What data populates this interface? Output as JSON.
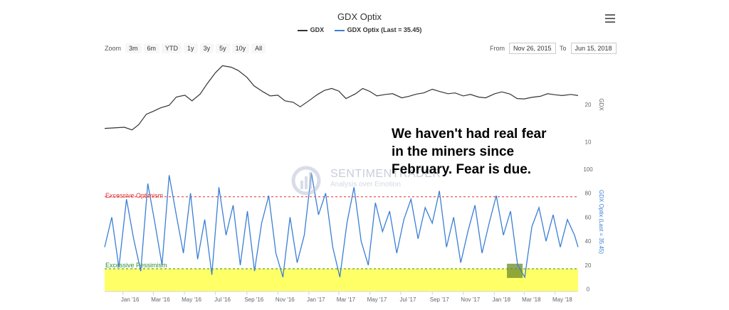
{
  "header": {
    "title": "GDX Optix",
    "menu_icon": "hamburger-menu-icon"
  },
  "legend": [
    {
      "label": "GDX",
      "color": "#333333"
    },
    {
      "label": "GDX Optix (Last = 35.45)",
      "color": "#3a7fd5"
    }
  ],
  "zoom": {
    "label": "Zoom",
    "buttons": [
      "3m",
      "6m",
      "YTD",
      "1y",
      "3y",
      "5y",
      "10y",
      "All"
    ]
  },
  "range": {
    "from_label": "From",
    "from_value": "Nov 26, 2015",
    "to_label": "To",
    "to_value": "Jun 15, 2018"
  },
  "annotation": {
    "lines": [
      "We haven't had real fear",
      "in the miners since",
      "February. Fear is due."
    ]
  },
  "watermark": {
    "brand": "SENTIMENTRADER",
    "tagline": "Analysis over Emotion"
  },
  "chart_data": [
    {
      "type": "line",
      "name": "GDX",
      "yaxis": {
        "label": "GDX",
        "ticks": [
          10,
          20
        ],
        "range": [
          8,
          32
        ]
      },
      "x": [
        "2015-11-26",
        "2016-01-04",
        "2016-01-19",
        "2016-02-01",
        "2016-02-16",
        "2016-03-01",
        "2016-03-15",
        "2016-04-01",
        "2016-04-15",
        "2016-05-02",
        "2016-05-16",
        "2016-06-01",
        "2016-06-15",
        "2016-07-01",
        "2016-07-15",
        "2016-08-01",
        "2016-08-15",
        "2016-09-01",
        "2016-09-15",
        "2016-10-03",
        "2016-10-17",
        "2016-11-01",
        "2016-11-15",
        "2016-12-01",
        "2016-12-15",
        "2017-01-03",
        "2017-01-17",
        "2017-02-01",
        "2017-02-15",
        "2017-03-01",
        "2017-03-15",
        "2017-04-03",
        "2017-04-17",
        "2017-05-01",
        "2017-05-15",
        "2017-06-01",
        "2017-06-15",
        "2017-07-03",
        "2017-07-17",
        "2017-08-01",
        "2017-08-15",
        "2017-09-01",
        "2017-09-15",
        "2017-10-02",
        "2017-10-16",
        "2017-11-01",
        "2017-11-15",
        "2017-12-01",
        "2017-12-15",
        "2018-01-02",
        "2018-01-16",
        "2018-02-01",
        "2018-02-15",
        "2018-03-01",
        "2018-03-15",
        "2018-04-02",
        "2018-04-16",
        "2018-05-01",
        "2018-05-15",
        "2018-06-01",
        "2018-06-15"
      ],
      "values": [
        13.6,
        13.9,
        13.2,
        14.6,
        17.4,
        18.2,
        19.1,
        19.8,
        22.0,
        22.5,
        21.0,
        22.8,
        25.6,
        28.5,
        30.4,
        30.0,
        29.1,
        27.3,
        25.0,
        23.4,
        22.3,
        22.5,
        21.0,
        20.6,
        19.4,
        21.2,
        22.6,
        23.8,
        24.3,
        23.6,
        21.6,
        22.9,
        24.3,
        23.5,
        22.3,
        22.7,
        22.9,
        21.8,
        22.2,
        22.8,
        23.1,
        24.1,
        23.5,
        22.9,
        23.1,
        22.3,
        22.7,
        22.0,
        21.8,
        22.9,
        23.4,
        22.8,
        21.6,
        21.5,
        21.9,
        22.2,
        22.9,
        22.6,
        22.4,
        22.7,
        22.4
      ]
    },
    {
      "type": "line",
      "name": "GDX Optix (Last = 35.45)",
      "yaxis": {
        "label": "GDX Optix (Last = 35.45)",
        "ticks": [
          0,
          20,
          40,
          60,
          80,
          100
        ],
        "range": [
          -2,
          100
        ]
      },
      "x_ticks": [
        "Jan '16",
        "Mar '16",
        "May '16",
        "Jul '16",
        "Sep '16",
        "Nov '16",
        "Jan '17",
        "Mar '17",
        "May '17",
        "Jul '17",
        "Sep '17",
        "Nov '17",
        "Jan '18",
        "Mar '18",
        "May '18"
      ],
      "x": [
        "2015-11-26",
        "2015-12-10",
        "2015-12-24",
        "2016-01-08",
        "2016-01-22",
        "2016-02-05",
        "2016-02-19",
        "2016-03-04",
        "2016-03-18",
        "2016-04-01",
        "2016-04-15",
        "2016-04-29",
        "2016-05-13",
        "2016-05-27",
        "2016-06-10",
        "2016-06-24",
        "2016-07-08",
        "2016-07-22",
        "2016-08-05",
        "2016-08-19",
        "2016-09-02",
        "2016-09-16",
        "2016-09-30",
        "2016-10-14",
        "2016-10-28",
        "2016-11-11",
        "2016-11-25",
        "2016-12-09",
        "2016-12-23",
        "2017-01-06",
        "2017-01-20",
        "2017-02-03",
        "2017-02-17",
        "2017-03-03",
        "2017-03-17",
        "2017-03-31",
        "2017-04-14",
        "2017-04-28",
        "2017-05-12",
        "2017-05-26",
        "2017-06-09",
        "2017-06-23",
        "2017-07-07",
        "2017-07-21",
        "2017-08-04",
        "2017-08-18",
        "2017-09-01",
        "2017-09-15",
        "2017-09-29",
        "2017-10-13",
        "2017-10-27",
        "2017-11-10",
        "2017-11-24",
        "2017-12-08",
        "2017-12-22",
        "2018-01-05",
        "2018-01-19",
        "2018-02-02",
        "2018-02-16",
        "2018-03-02",
        "2018-03-16",
        "2018-03-30",
        "2018-04-13",
        "2018-04-27",
        "2018-05-11",
        "2018-05-25",
        "2018-06-08",
        "2018-06-15"
      ],
      "values": [
        35,
        60,
        18,
        75,
        42,
        15,
        88,
        55,
        20,
        95,
        62,
        30,
        80,
        25,
        58,
        12,
        85,
        45,
        70,
        20,
        65,
        15,
        55,
        78,
        30,
        10,
        60,
        22,
        45,
        97,
        62,
        80,
        35,
        10,
        55,
        85,
        40,
        20,
        72,
        48,
        65,
        30,
        58,
        75,
        42,
        68,
        55,
        82,
        35,
        60,
        22,
        48,
        70,
        30,
        55,
        78,
        45,
        65,
        20,
        10,
        52,
        68,
        40,
        62,
        35,
        58,
        45,
        35
      ],
      "thresholds": [
        {
          "label": "Excessive Optimism",
          "value": 77,
          "color": "#e03030"
        },
        {
          "label": "Excessive Pessimism",
          "value": 17,
          "color": "#2e8b2e"
        }
      ]
    }
  ]
}
